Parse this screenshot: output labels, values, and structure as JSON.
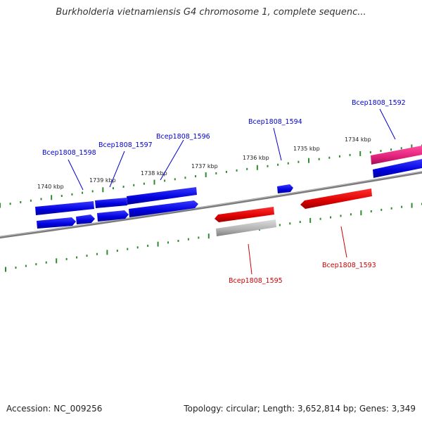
{
  "title": "Burkholderia vietnamiensis G4 chromosome 1, complete sequenc...",
  "footer": {
    "accession": "Accession: NC_009256",
    "summary": "Topology: circular; Length: 3,652,814 bp; Genes: 3,349"
  },
  "scale_labels": [
    "1740 kbp",
    "1739 kbp",
    "1738 kbp",
    "1737 kbp",
    "1736 kbp",
    "1735 kbp",
    "1734 kbp"
  ],
  "gene_labels": {
    "plus": [
      "Bcep1808_1598",
      "Bcep1808_1597",
      "Bcep1808_1596",
      "Bcep1808_1594",
      "Bcep1808_1592"
    ],
    "minus": [
      "Bcep1808_1595",
      "Bcep1808_1593"
    ]
  },
  "colors": {
    "plus_strand": "#0000dd",
    "minus_strand": "#dd0000",
    "rna": "#e0207a",
    "pseudo": "#b0b0b0",
    "backbone": "#808080",
    "ticks": "#2e8b2e",
    "plus_label": "#0000cc",
    "minus_label": "#cc0000"
  }
}
